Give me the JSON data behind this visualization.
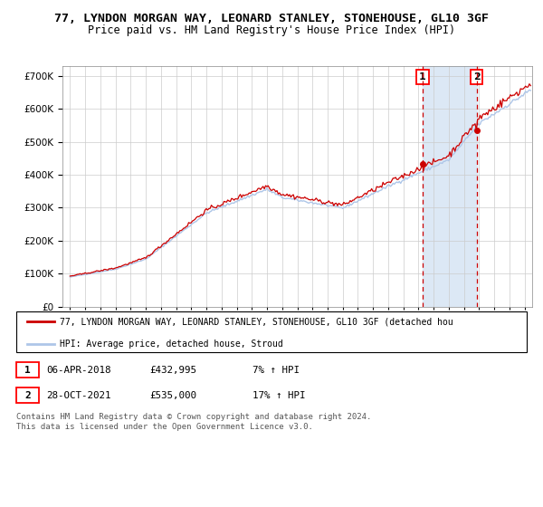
{
  "title": "77, LYNDON MORGAN WAY, LEONARD STANLEY, STONEHOUSE, GL10 3GF",
  "subtitle": "Price paid vs. HM Land Registry's House Price Index (HPI)",
  "ylim": [
    0,
    730000
  ],
  "yticks": [
    0,
    100000,
    200000,
    300000,
    400000,
    500000,
    600000,
    700000
  ],
  "xlim_start": 1994.5,
  "xlim_end": 2025.5,
  "hpi_color": "#aec6e8",
  "property_color": "#cc0000",
  "sale1_year": 2018.27,
  "sale1_price": 432995,
  "sale2_year": 2021.83,
  "sale2_price": 535000,
  "legend_property": "77, LYNDON MORGAN WAY, LEONARD STANLEY, STONEHOUSE, GL10 3GF (detached hou",
  "legend_hpi": "HPI: Average price, detached house, Stroud",
  "table_row1": [
    "1",
    "06-APR-2018",
    "£432,995",
    "7% ↑ HPI"
  ],
  "table_row2": [
    "2",
    "28-OCT-2021",
    "£535,000",
    "17% ↑ HPI"
  ],
  "footer": "Contains HM Land Registry data © Crown copyright and database right 2024.\nThis data is licensed under the Open Government Licence v3.0.",
  "bg_shade_color": "#dce8f5",
  "grid_color": "#cccccc"
}
